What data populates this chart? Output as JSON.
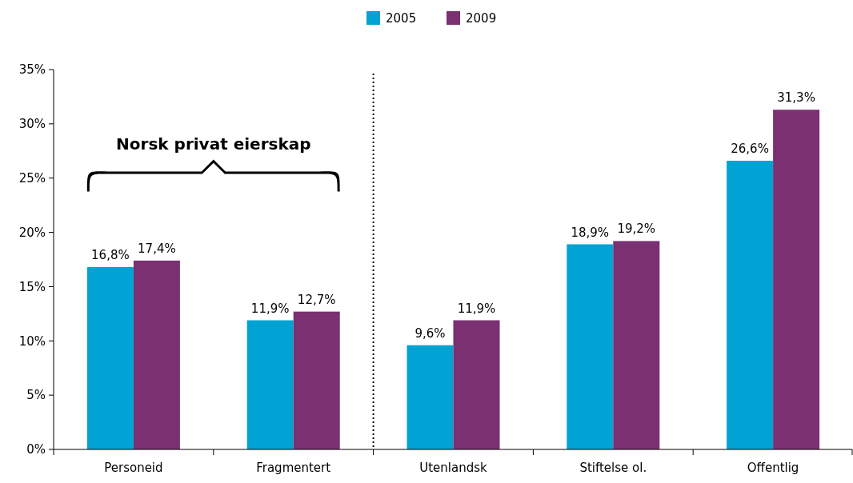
{
  "chart_data": {
    "type": "bar",
    "categories": [
      "Personeid",
      "Fragmentert",
      "Utenlandsk",
      "Stiftelse ol.",
      "Offentlig"
    ],
    "series": [
      {
        "name": "2005",
        "color": "#00a3d3",
        "values": [
          16.8,
          11.9,
          9.6,
          18.9,
          26.6
        ],
        "value_labels": [
          "16,8%",
          "11,9%",
          "9,6%",
          "18,9%",
          "26,6%"
        ]
      },
      {
        "name": "2009",
        "color": "#7b3072",
        "values": [
          17.4,
          12.7,
          11.9,
          19.2,
          31.3
        ],
        "value_labels": [
          "17,4%",
          "12,7%",
          "11,9%",
          "19,2%",
          "31,3%"
        ]
      }
    ],
    "ylim": [
      0,
      35
    ],
    "yticks": [
      {
        "value": 0,
        "label": "0%"
      },
      {
        "value": 5,
        "label": "5%"
      },
      {
        "value": 10,
        "label": "10%"
      },
      {
        "value": 15,
        "label": "15%"
      },
      {
        "value": 20,
        "label": "20%"
      },
      {
        "value": 25,
        "label": "25%"
      },
      {
        "value": 30,
        "label": "30%"
      },
      {
        "value": 35,
        "label": "35%"
      }
    ],
    "grid": false,
    "legend": "top",
    "annotations": [
      "Norsk privat eierskap"
    ]
  }
}
